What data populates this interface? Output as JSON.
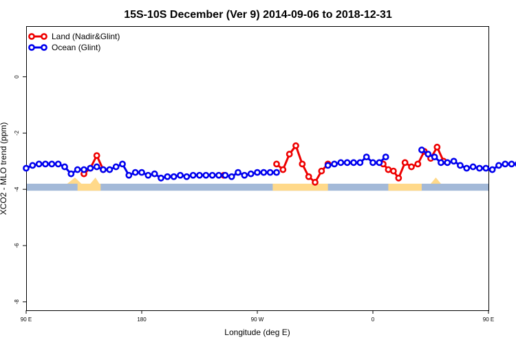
{
  "chart_data": {
    "type": "line",
    "title": "15S-10S December (Ver 9)   2014-09-06 to 2018-12-31",
    "xlabel": "Longitude (deg E)",
    "ylabel": "XCO2 - MLO trend (ppm)",
    "x_range_unwrapped": [
      90,
      450
    ],
    "ylim": [
      -8.3,
      1.8
    ],
    "x_ticks": [
      {
        "value": 90,
        "label": "90 E"
      },
      {
        "value": 180,
        "label": "180"
      },
      {
        "value": 270,
        "label": "90 W"
      },
      {
        "value": 360,
        "label": "0"
      },
      {
        "value": 450,
        "label": "90 E"
      },
      {
        "value": 540,
        "label": "180"
      }
    ],
    "y_ticks": [
      {
        "value": 0,
        "label": "0"
      },
      {
        "value": -2,
        "label": "-2"
      },
      {
        "value": -4,
        "label": "-4"
      },
      {
        "value": -6,
        "label": "-6"
      },
      {
        "value": -8,
        "label": "-8"
      }
    ],
    "legend_position": "top-left",
    "colors": {
      "land": "#ee0000",
      "ocean": "#0000ee",
      "ocean_band": "#a3b9d8",
      "land_band": "#ffd98a"
    },
    "land_mask_band": {
      "y_top": -3.8,
      "y_bottom": -4.05
    },
    "series": [
      {
        "name": "Land (Nadir&Glint)",
        "color": "#ee0000",
        "points": [
          [
            135,
            -3.45
          ],
          [
            140,
            -3.25
          ],
          [
            145,
            -2.8
          ],
          [
            150,
            -3.3
          ],
          [
            244,
            -3.5
          ],
          [
            285,
            -3.1
          ],
          [
            290,
            -3.3
          ],
          [
            295,
            -2.75
          ],
          [
            300,
            -2.45
          ],
          [
            305,
            -3.1
          ],
          [
            310,
            -3.55
          ],
          [
            315,
            -3.75
          ],
          [
            320,
            -3.35
          ],
          [
            325,
            -3.1
          ],
          [
            368,
            -3.1
          ],
          [
            372,
            -3.3
          ],
          [
            376,
            -3.35
          ],
          [
            380,
            -3.6
          ],
          [
            385,
            -3.05
          ],
          [
            390,
            -3.2
          ],
          [
            395,
            -3.1
          ],
          [
            400,
            -2.65
          ],
          [
            405,
            -2.9
          ],
          [
            410,
            -2.5
          ],
          [
            415,
            -3.0
          ],
          [
            513,
            -3.45
          ],
          [
            518,
            -3.3
          ],
          [
            523,
            -2.8
          ]
        ]
      },
      {
        "name": "Ocean (Glint)",
        "color": "#0000ee",
        "points": [
          [
            90,
            -3.25
          ],
          [
            95,
            -3.15
          ],
          [
            100,
            -3.1
          ],
          [
            105,
            -3.1
          ],
          [
            110,
            -3.1
          ],
          [
            115,
            -3.1
          ],
          [
            120,
            -3.2
          ],
          [
            125,
            -3.45
          ],
          [
            130,
            -3.3
          ],
          [
            135,
            -3.3
          ],
          [
            140,
            -3.25
          ],
          [
            145,
            -3.2
          ],
          [
            150,
            -3.3
          ],
          [
            155,
            -3.3
          ],
          [
            160,
            -3.2
          ],
          [
            165,
            -3.1
          ],
          [
            170,
            -3.5
          ],
          [
            175,
            -3.4
          ],
          [
            180,
            -3.4
          ],
          [
            185,
            -3.5
          ],
          [
            190,
            -3.45
          ],
          [
            195,
            -3.6
          ],
          [
            200,
            -3.55
          ],
          [
            205,
            -3.55
          ],
          [
            210,
            -3.5
          ],
          [
            215,
            -3.55
          ],
          [
            220,
            -3.5
          ],
          [
            225,
            -3.5
          ],
          [
            230,
            -3.5
          ],
          [
            235,
            -3.5
          ],
          [
            240,
            -3.5
          ],
          [
            245,
            -3.5
          ],
          [
            250,
            -3.55
          ],
          [
            255,
            -3.4
          ],
          [
            260,
            -3.5
          ],
          [
            265,
            -3.45
          ],
          [
            270,
            -3.4
          ],
          [
            275,
            -3.4
          ],
          [
            280,
            -3.4
          ],
          [
            285,
            -3.4
          ],
          [
            325,
            -3.15
          ],
          [
            330,
            -3.1
          ],
          [
            335,
            -3.05
          ],
          [
            340,
            -3.05
          ],
          [
            345,
            -3.05
          ],
          [
            350,
            -3.05
          ],
          [
            355,
            -2.85
          ],
          [
            360,
            -3.05
          ],
          [
            365,
            -3.05
          ],
          [
            370,
            -2.85
          ],
          [
            398,
            -2.6
          ],
          [
            403,
            -2.75
          ],
          [
            408,
            -2.85
          ],
          [
            413,
            -3.05
          ],
          [
            418,
            -3.05
          ],
          [
            423,
            -3.0
          ],
          [
            428,
            -3.15
          ],
          [
            433,
            -3.25
          ],
          [
            438,
            -3.2
          ],
          [
            443,
            -3.25
          ],
          [
            448,
            -3.25
          ],
          [
            453,
            -3.3
          ],
          [
            458,
            -3.15
          ],
          [
            463,
            -3.1
          ],
          [
            468,
            -3.1
          ],
          [
            473,
            -3.1
          ],
          [
            478,
            -3.1
          ],
          [
            483,
            -3.15
          ],
          [
            488,
            -3.45
          ],
          [
            493,
            -3.3
          ],
          [
            498,
            -3.3
          ],
          [
            503,
            -3.3
          ],
          [
            508,
            -3.3
          ],
          [
            513,
            -3.25
          ],
          [
            518,
            -3.2
          ],
          [
            523,
            -3.3
          ],
          [
            528,
            -3.3
          ],
          [
            533,
            -3.3
          ],
          [
            538,
            -3.1
          ],
          [
            543,
            -3.55
          ],
          [
            548,
            -3.5
          ],
          [
            553,
            -3.45
          ],
          [
            558,
            -3.45
          ]
        ]
      }
    ]
  }
}
